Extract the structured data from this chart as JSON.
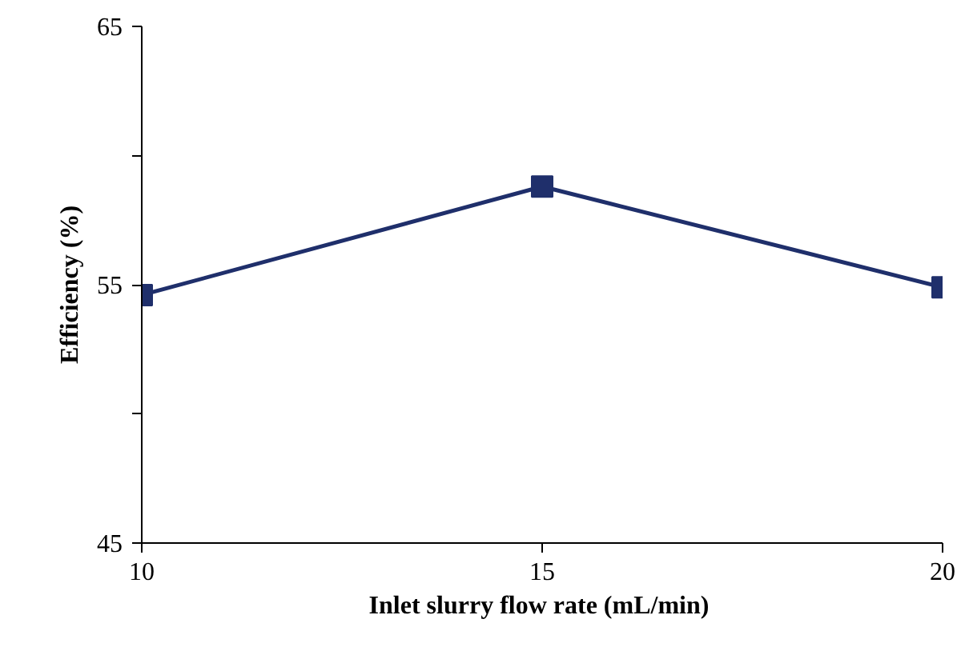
{
  "chart_data": {
    "type": "line",
    "xlabel": "Inlet slurry  flow rate (mL/min)",
    "ylabel": "Efficiency (%)",
    "x": [
      10,
      15,
      20
    ],
    "series": [
      {
        "color": "#1f2f6b",
        "values": [
          54.6,
          58.8,
          54.9
        ]
      }
    ],
    "xlim": [
      10,
      20
    ],
    "ylim": [
      45,
      65
    ],
    "xticks": [
      10,
      15,
      20
    ],
    "yticks": [
      45,
      {
        "value": 50,
        "label": null
      },
      55,
      {
        "value": 60,
        "label": null
      },
      65
    ],
    "grid": false,
    "marker": "square",
    "line_style": "solid"
  }
}
